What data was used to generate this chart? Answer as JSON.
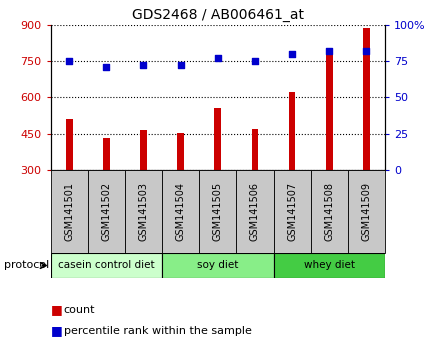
{
  "title": "GDS2468 / AB006461_at",
  "samples": [
    "GSM141501",
    "GSM141502",
    "GSM141503",
    "GSM141504",
    "GSM141505",
    "GSM141506",
    "GSM141507",
    "GSM141508",
    "GSM141509"
  ],
  "counts": [
    510,
    430,
    465,
    452,
    557,
    468,
    622,
    790,
    888
  ],
  "percentile_ranks": [
    75,
    71,
    72,
    72,
    77,
    75,
    80,
    82,
    82
  ],
  "ylim_left": [
    300,
    900
  ],
  "ylim_right": [
    0,
    100
  ],
  "yticks_left": [
    300,
    450,
    600,
    750,
    900
  ],
  "yticks_right": [
    0,
    25,
    50,
    75,
    100
  ],
  "bar_color": "#cc0000",
  "dot_color": "#0000cc",
  "groups": [
    {
      "label": "casein control diet",
      "start": 0,
      "end": 3,
      "color": "#ccffcc"
    },
    {
      "label": "soy diet",
      "start": 3,
      "end": 6,
      "color": "#88ee88"
    },
    {
      "label": "whey diet",
      "start": 6,
      "end": 9,
      "color": "#44cc44"
    }
  ],
  "protocol_label": "protocol",
  "legend_count_label": "count",
  "legend_pct_label": "percentile rank within the sample",
  "plot_bg": "#ffffff",
  "label_box_color": "#c8c8c8",
  "bar_width": 0.18
}
